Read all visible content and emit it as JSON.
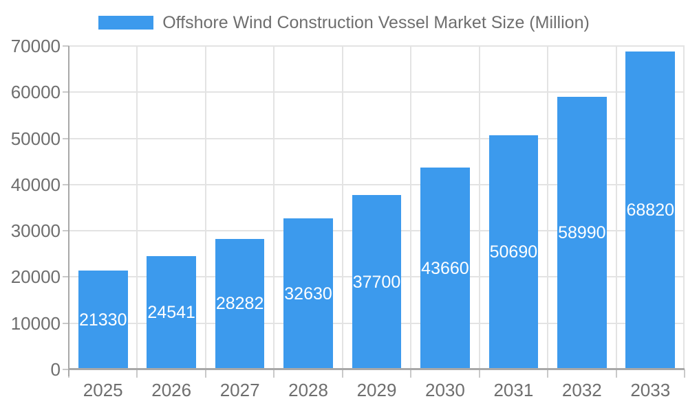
{
  "legend": {
    "label": "Offshore Wind Construction Vessel Market Size (Million)"
  },
  "chart_data": {
    "type": "bar",
    "title": "Offshore Wind Construction Vessel Market Size (Million)",
    "series_name": "Offshore Wind Construction Vessel Market Size (Million)",
    "categories": [
      "2025",
      "2026",
      "2027",
      "2028",
      "2029",
      "2030",
      "2031",
      "2032",
      "2033"
    ],
    "values": [
      21330,
      24541,
      28282,
      32630,
      37700,
      43660,
      50690,
      58990,
      68820
    ],
    "xlabel": "",
    "ylabel": "",
    "ylim": [
      0,
      70000
    ],
    "y_tick_interval": 10000,
    "y_tick_labels": [
      "0",
      "10000",
      "20000",
      "30000",
      "40000",
      "50000",
      "60000",
      "70000"
    ],
    "grid": true,
    "legend_position": "top-center",
    "value_labels": "inside-center"
  },
  "colors": {
    "bar": "#3C9AED",
    "text": "#6e6e6e",
    "grid": "#e3e3e3",
    "axis": "#a8a8a8",
    "tick": "#c9c9c9",
    "value_label": "#ffffff",
    "background": "#ffffff"
  }
}
